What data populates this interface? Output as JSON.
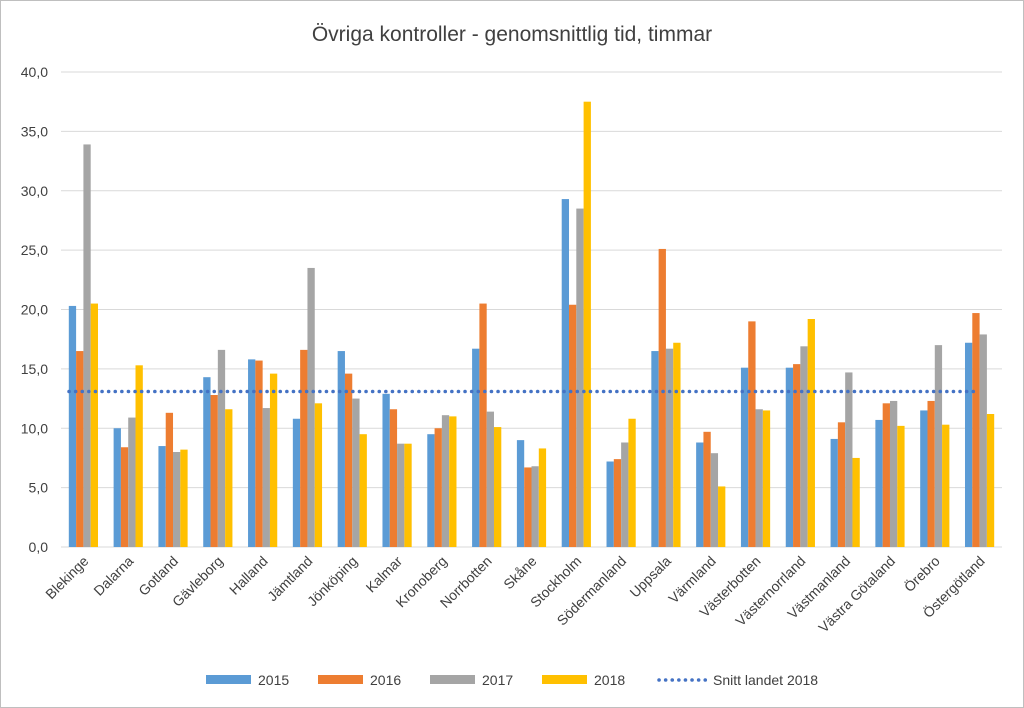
{
  "chart_data": {
    "type": "bar",
    "title": "Övriga kontroller - genomsnittlig tid, timmar",
    "xlabel": "",
    "ylabel": "",
    "ylim": [
      0,
      40
    ],
    "yticks": [
      "0,0",
      "5,0",
      "10,0",
      "15,0",
      "20,0",
      "25,0",
      "30,0",
      "35,0",
      "40,0"
    ],
    "grid": true,
    "legend_position": "bottom",
    "categories": [
      "Blekinge",
      "Dalarna",
      "Gotland",
      "Gävleborg",
      "Halland",
      "Jämtland",
      "Jönköping",
      "Kalmar",
      "Kronoberg",
      "Norrbotten",
      "Skåne",
      "Stockholm",
      "Södermanland",
      "Uppsala",
      "Värmland",
      "Västerbotten",
      "Västernorrland",
      "Västmanland",
      "Västra Götaland",
      "Örebro",
      "Östergötland"
    ],
    "series": [
      {
        "name": "2015",
        "color": "#5b9bd5",
        "values": [
          20.3,
          10.0,
          8.5,
          14.3,
          15.8,
          10.8,
          16.5,
          12.9,
          9.5,
          16.7,
          9.0,
          29.3,
          7.2,
          16.5,
          8.8,
          15.1,
          15.1,
          9.1,
          10.7,
          11.5,
          17.2
        ]
      },
      {
        "name": "2016",
        "color": "#ed7d31",
        "values": [
          16.5,
          8.4,
          11.3,
          12.8,
          15.7,
          16.6,
          14.6,
          11.6,
          10.0,
          20.5,
          6.7,
          20.4,
          7.4,
          25.1,
          9.7,
          19.0,
          15.4,
          10.5,
          12.1,
          12.3,
          19.7
        ]
      },
      {
        "name": "2017",
        "color": "#a5a5a5",
        "values": [
          33.9,
          10.9,
          8.0,
          16.6,
          11.7,
          23.5,
          12.5,
          8.7,
          11.1,
          11.4,
          6.8,
          28.5,
          8.8,
          16.7,
          7.9,
          11.6,
          16.9,
          14.7,
          12.3,
          17.0,
          17.9
        ]
      },
      {
        "name": "2018",
        "color": "#ffc000",
        "values": [
          20.5,
          15.3,
          8.2,
          11.6,
          14.6,
          12.1,
          9.5,
          8.7,
          11.0,
          10.1,
          8.3,
          37.5,
          10.8,
          17.2,
          5.1,
          11.5,
          19.2,
          7.5,
          10.2,
          10.3,
          11.2
        ]
      }
    ],
    "reference_line": {
      "name": "Snitt landet 2018",
      "value": 13.1,
      "color": "#4472c4",
      "style": "dotted"
    }
  }
}
